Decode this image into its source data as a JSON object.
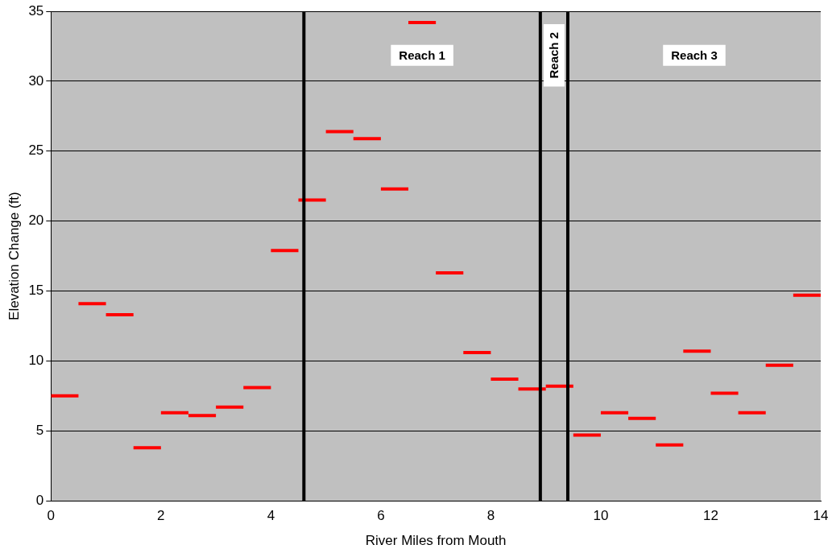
{
  "chart_data": {
    "type": "line",
    "xlabel": "River Miles from Mouth",
    "ylabel": "Elevation Change (ft)",
    "series": [
      {
        "color": "#ff0000",
        "x": [
          0,
          0.5
        ],
        "values": [
          7.5,
          7.5
        ]
      },
      {
        "color": "#ff0000",
        "x": [
          0.5,
          1
        ],
        "values": [
          14.1,
          14.1
        ]
      },
      {
        "color": "#ff0000",
        "x": [
          1,
          1.5
        ],
        "values": [
          13.3,
          13.3
        ]
      },
      {
        "color": "#ff0000",
        "x": [
          1.5,
          2
        ],
        "values": [
          3.8,
          3.8
        ]
      },
      {
        "color": "#ff0000",
        "x": [
          2,
          2.5
        ],
        "values": [
          6.3,
          6.3
        ]
      },
      {
        "color": "#ff0000",
        "x": [
          2.5,
          3
        ],
        "values": [
          6.1,
          6.1
        ]
      },
      {
        "color": "#ff0000",
        "x": [
          3,
          3.5
        ],
        "values": [
          6.7,
          6.7
        ]
      },
      {
        "color": "#ff0000",
        "x": [
          3.5,
          4
        ],
        "values": [
          8.1,
          8.1
        ]
      },
      {
        "color": "#ff0000",
        "x": [
          4,
          4.5
        ],
        "values": [
          17.9,
          17.9
        ]
      },
      {
        "color": "#ff0000",
        "x": [
          4.5,
          5
        ],
        "values": [
          21.5,
          21.5
        ]
      },
      {
        "color": "#ff0000",
        "x": [
          5,
          5.5
        ],
        "values": [
          26.4,
          26.4
        ]
      },
      {
        "color": "#ff0000",
        "x": [
          5.5,
          6
        ],
        "values": [
          25.9,
          25.9
        ]
      },
      {
        "color": "#ff0000",
        "x": [
          6,
          6.5
        ],
        "values": [
          22.3,
          22.3
        ]
      },
      {
        "color": "#ff0000",
        "x": [
          6.5,
          7
        ],
        "values": [
          34.2,
          34.2
        ]
      },
      {
        "color": "#ff0000",
        "x": [
          7,
          7.5
        ],
        "values": [
          16.3,
          16.3
        ]
      },
      {
        "color": "#ff0000",
        "x": [
          7.5,
          8
        ],
        "values": [
          10.6,
          10.6
        ]
      },
      {
        "color": "#ff0000",
        "x": [
          8,
          8.5
        ],
        "values": [
          8.7,
          8.7
        ]
      },
      {
        "color": "#ff0000",
        "x": [
          8.5,
          9
        ],
        "values": [
          8.0,
          8.0
        ]
      },
      {
        "color": "#ff0000",
        "x": [
          9,
          9.5
        ],
        "values": [
          8.2,
          8.2
        ]
      },
      {
        "color": "#ff0000",
        "x": [
          9.5,
          10
        ],
        "values": [
          4.7,
          4.7
        ]
      },
      {
        "color": "#ff0000",
        "x": [
          10,
          10.5
        ],
        "values": [
          6.3,
          6.3
        ]
      },
      {
        "color": "#ff0000",
        "x": [
          10.5,
          11
        ],
        "values": [
          5.9,
          5.9
        ]
      },
      {
        "color": "#ff0000",
        "x": [
          11,
          11.5
        ],
        "values": [
          4.0,
          4.0
        ]
      },
      {
        "color": "#ff0000",
        "x": [
          11.5,
          12
        ],
        "values": [
          10.7,
          10.7
        ]
      },
      {
        "color": "#ff0000",
        "x": [
          12,
          12.5
        ],
        "values": [
          7.7,
          7.7
        ]
      },
      {
        "color": "#ff0000",
        "x": [
          12.5,
          13
        ],
        "values": [
          6.3,
          6.3
        ]
      },
      {
        "color": "#ff0000",
        "x": [
          13,
          13.5
        ],
        "values": [
          9.7,
          9.7
        ]
      },
      {
        "color": "#ff0000",
        "x": [
          13.5,
          14
        ],
        "values": [
          14.7,
          14.7
        ]
      }
    ],
    "xlim": [
      0,
      14
    ],
    "xticks": [
      0,
      2,
      4,
      6,
      8,
      10,
      12,
      14
    ],
    "ylim": [
      0,
      35
    ],
    "yticks": [
      0,
      5,
      10,
      15,
      20,
      25,
      30,
      35
    ],
    "grid": "y",
    "legend": false,
    "ref_lines": [
      {
        "axis": "x",
        "value": 4.6,
        "color": "#000000"
      },
      {
        "axis": "x",
        "value": 8.9,
        "color": "#000000"
      },
      {
        "axis": "x",
        "value": 9.4,
        "color": "#000000"
      }
    ],
    "annotations": [
      "Reach 1",
      "Reach 2",
      "Reach 3"
    ]
  }
}
